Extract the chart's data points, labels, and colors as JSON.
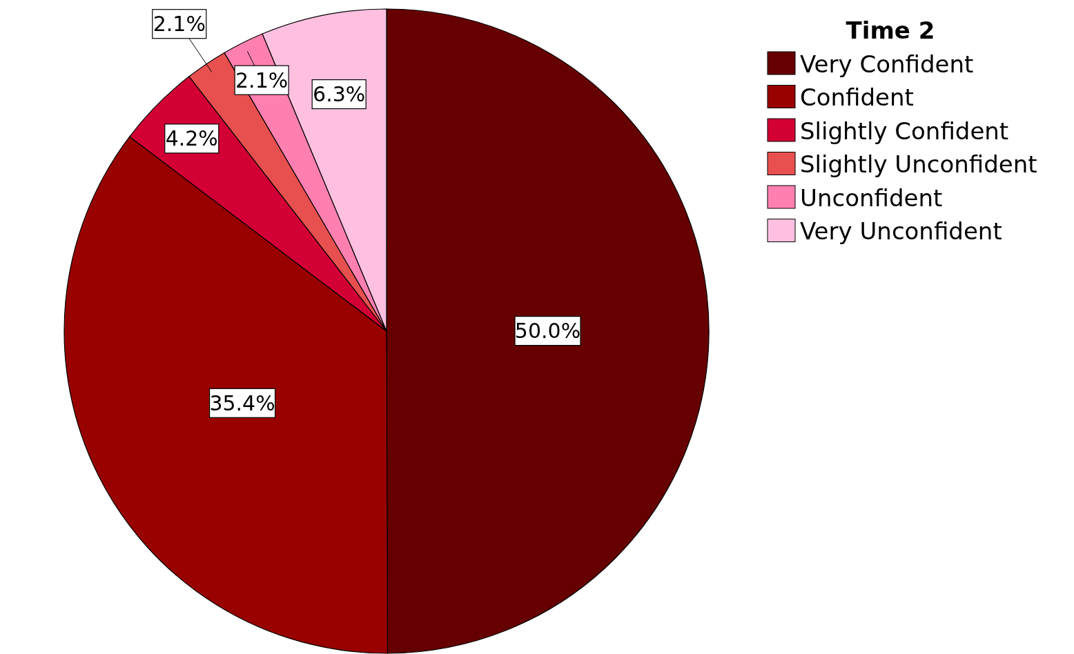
{
  "chart_data": {
    "type": "pie",
    "legend_title": "Time 2",
    "legend": "top right",
    "data_labels": true,
    "categories": [
      "Very Confident",
      "Confident",
      "Slightly Confident",
      "Slightly Unconfident",
      "Unconfident",
      "Very Unconfident"
    ],
    "values": [
      50.0,
      35.4,
      4.2,
      2.1,
      2.1,
      6.3
    ],
    "value_labels": [
      "50.0%",
      "35.4%",
      "4.2%",
      "2.1%",
      "2.1%",
      "6.3%"
    ],
    "colors": [
      "#660000",
      "#990000",
      "#d20034",
      "#e8504f",
      "#ff80b0",
      "#ffc0e0"
    ]
  }
}
